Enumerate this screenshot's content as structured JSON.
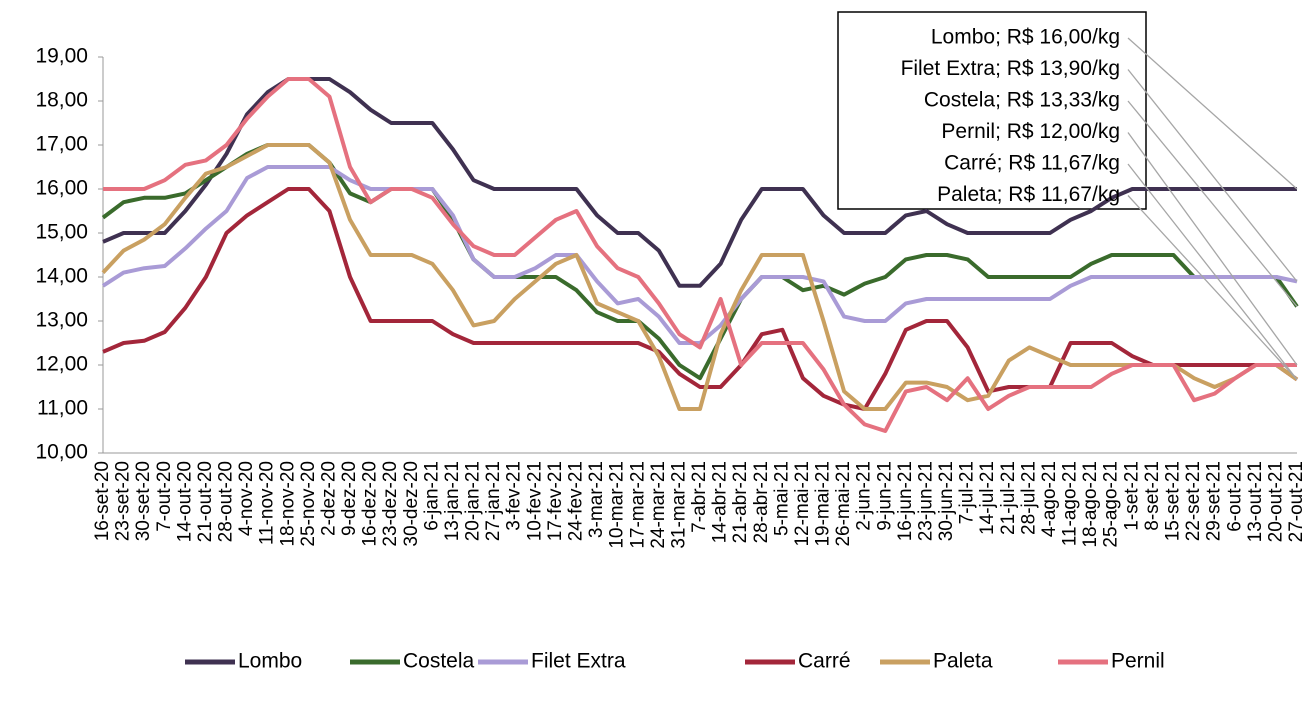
{
  "chart_data": {
    "type": "line",
    "categories": [
      "16-set-20",
      "23-set-20",
      "30-set-20",
      "7-out-20",
      "14-out-20",
      "21-out-20",
      "28-out-20",
      "4-nov-20",
      "11-nov-20",
      "18-nov-20",
      "25-nov-20",
      "2-dez-20",
      "9-dez-20",
      "16-dez-20",
      "23-dez-20",
      "30-dez-20",
      "6-jan-21",
      "13-jan-21",
      "20-jan-21",
      "27-jan-21",
      "3-fev-21",
      "10-fev-21",
      "17-fev-21",
      "24-fev-21",
      "3-mar-21",
      "10-mar-21",
      "17-mar-21",
      "24-mar-21",
      "31-mar-21",
      "7-abr-21",
      "14-abr-21",
      "21-abr-21",
      "28-abr-21",
      "5-mai-21",
      "12-mai-21",
      "19-mai-21",
      "26-mai-21",
      "2-jun-21",
      "9-jun-21",
      "16-jun-21",
      "23-jun-21",
      "30-jun-21",
      "7-jul-21",
      "14-jul-21",
      "21-jul-21",
      "28-jul-21",
      "4-ago-21",
      "11-ago-21",
      "18-ago-21",
      "25-ago-21",
      "1-set-21",
      "8-set-21",
      "15-set-21",
      "22-set-21",
      "29-set-21",
      "6-out-21",
      "13-out-21",
      "20-out-21",
      "27-out-21"
    ],
    "series": [
      {
        "name": "Lombo",
        "color": "#3f3151",
        "values": [
          14.8,
          15,
          15,
          15,
          15.5,
          16.1,
          16.8,
          17.7,
          18.2,
          18.5,
          18.5,
          18.5,
          18.2,
          17.8,
          17.5,
          17.5,
          17.5,
          16.9,
          16.2,
          16,
          16,
          16,
          16,
          16,
          15.4,
          15,
          15,
          14.6,
          13.8,
          13.8,
          14.3,
          15.3,
          16,
          16,
          16,
          15.4,
          15,
          15,
          15,
          15.4,
          15.5,
          15.2,
          15,
          15,
          15,
          15,
          15,
          15.3,
          15.5,
          15.8,
          16,
          16,
          16,
          16,
          16,
          16,
          16,
          16,
          16
        ]
      },
      {
        "name": "Costela",
        "color": "#3a6b2c",
        "values": [
          15.35,
          15.7,
          15.8,
          15.8,
          15.9,
          16.2,
          16.5,
          16.8,
          17,
          17,
          17,
          16.6,
          15.9,
          15.7,
          16,
          16,
          16,
          15.3,
          14.4,
          14,
          14,
          14,
          14,
          13.7,
          13.2,
          13,
          13,
          12.6,
          12,
          11.7,
          12.6,
          13.5,
          14,
          14,
          13.7,
          13.8,
          13.6,
          13.85,
          14,
          14.4,
          14.5,
          14.5,
          14.4,
          14,
          14,
          14,
          14,
          14,
          14.3,
          14.5,
          14.5,
          14.5,
          14.5,
          14,
          14,
          14,
          14,
          14,
          13.33
        ]
      },
      {
        "name": "Filet Extra",
        "color": "#a99bd6",
        "values": [
          13.8,
          14.1,
          14.2,
          14.25,
          14.65,
          15.1,
          15.5,
          16.25,
          16.5,
          16.5,
          16.5,
          16.5,
          16.2,
          16,
          16,
          16,
          16,
          15.4,
          14.4,
          14,
          14,
          14.2,
          14.5,
          14.5,
          13.9,
          13.4,
          13.5,
          13.1,
          12.5,
          12.5,
          12.9,
          13.5,
          14,
          14,
          14,
          13.9,
          13.1,
          13,
          13,
          13.4,
          13.5,
          13.5,
          13.5,
          13.5,
          13.5,
          13.5,
          13.5,
          13.8,
          14,
          14,
          14,
          14,
          14,
          14,
          14,
          14,
          14,
          14,
          13.9
        ]
      },
      {
        "name": "Carré",
        "color": "#a3263a",
        "values": [
          12.3,
          12.5,
          12.55,
          12.75,
          13.3,
          14,
          15,
          15.4,
          15.7,
          16,
          16,
          15.5,
          14,
          13,
          13,
          13,
          13,
          12.7,
          12.5,
          12.5,
          12.5,
          12.5,
          12.5,
          12.5,
          12.5,
          12.5,
          12.5,
          12.3,
          11.8,
          11.5,
          11.5,
          12,
          12.7,
          12.8,
          11.7,
          11.3,
          11.1,
          11,
          11.8,
          12.8,
          13,
          13,
          12.4,
          11.4,
          11.5,
          11.5,
          11.5,
          12.5,
          12.5,
          12.5,
          12.2,
          12,
          12,
          12,
          12,
          12,
          12,
          12,
          11.67
        ]
      },
      {
        "name": "Paleta",
        "color": "#c9a061",
        "values": [
          14.1,
          14.6,
          14.85,
          15.2,
          15.8,
          16.35,
          16.5,
          16.75,
          17,
          17,
          17,
          16.6,
          15.3,
          14.5,
          14.5,
          14.5,
          14.3,
          13.7,
          12.9,
          13,
          13.5,
          13.9,
          14.3,
          14.5,
          13.4,
          13.2,
          13,
          12.2,
          11,
          11,
          12.7,
          13.7,
          14.5,
          14.5,
          14.5,
          13,
          11.4,
          11,
          11,
          11.6,
          11.6,
          11.5,
          11.2,
          11.3,
          12.1,
          12.4,
          12.2,
          12,
          12,
          12,
          12,
          12,
          12,
          11.7,
          11.5,
          11.7,
          12,
          12,
          11.67
        ]
      },
      {
        "name": "Pernil",
        "color": "#e5717f",
        "values": [
          16,
          16,
          16,
          16.2,
          16.55,
          16.65,
          17,
          17.6,
          18.1,
          18.5,
          18.5,
          18.1,
          16.5,
          15.7,
          16,
          16,
          15.8,
          15.2,
          14.7,
          14.5,
          14.5,
          14.9,
          15.3,
          15.5,
          14.7,
          14.2,
          14,
          13.4,
          12.7,
          12.4,
          13.5,
          12,
          12.5,
          12.5,
          12.5,
          11.9,
          11.1,
          10.65,
          10.5,
          11.4,
          11.5,
          11.2,
          11.7,
          11,
          11.3,
          11.5,
          11.5,
          11.5,
          11.5,
          11.8,
          12,
          12,
          12,
          11.2,
          11.35,
          11.7,
          12,
          12,
          12
        ]
      }
    ],
    "ylim": [
      10,
      19
    ],
    "yticks": [
      {
        "value": 10,
        "label": "10,00"
      },
      {
        "value": 11,
        "label": "11,00"
      },
      {
        "value": 12,
        "label": "12,00"
      },
      {
        "value": 13,
        "label": "13,00"
      },
      {
        "value": 14,
        "label": "14,00"
      },
      {
        "value": 15,
        "label": "15,00"
      },
      {
        "value": 16,
        "label": "16,00"
      },
      {
        "value": 17,
        "label": "17,00"
      },
      {
        "value": 18,
        "label": "18,00"
      },
      {
        "value": 19,
        "label": "19,00"
      }
    ],
    "grid": false,
    "legend": "bottom",
    "annotations": [
      {
        "label": "Lombo; R$ 16,00/kg",
        "value": 16
      },
      {
        "label": "Filet Extra; R$ 13,90/kg",
        "value": 13.9
      },
      {
        "label": "Costela; R$ 13,33/kg",
        "value": 13.33
      },
      {
        "label": "Pernil; R$ 12,00/kg",
        "value": 12
      },
      {
        "label": "Carré; R$ 11,67/kg",
        "value": 11.67
      },
      {
        "label": "Paleta; R$ 11,67/kg",
        "value": 11.67
      }
    ]
  }
}
